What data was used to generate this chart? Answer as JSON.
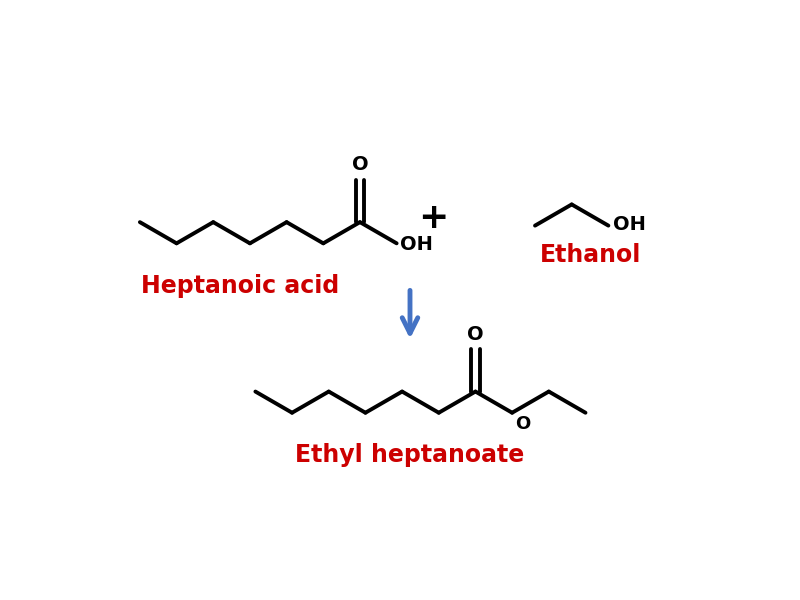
{
  "background_color": "#ffffff",
  "line_color": "#000000",
  "label_color": "#cc0000",
  "arrow_color": "#4472c4",
  "plus_color": "#000000",
  "heptanoic_acid_label": "Heptanoic acid",
  "ethanol_label": "Ethanol",
  "product_label": "Ethyl heptanoate",
  "line_width": 2.8,
  "font_size_label": 17,
  "font_size_atom": 14,
  "font_size_plus": 26
}
